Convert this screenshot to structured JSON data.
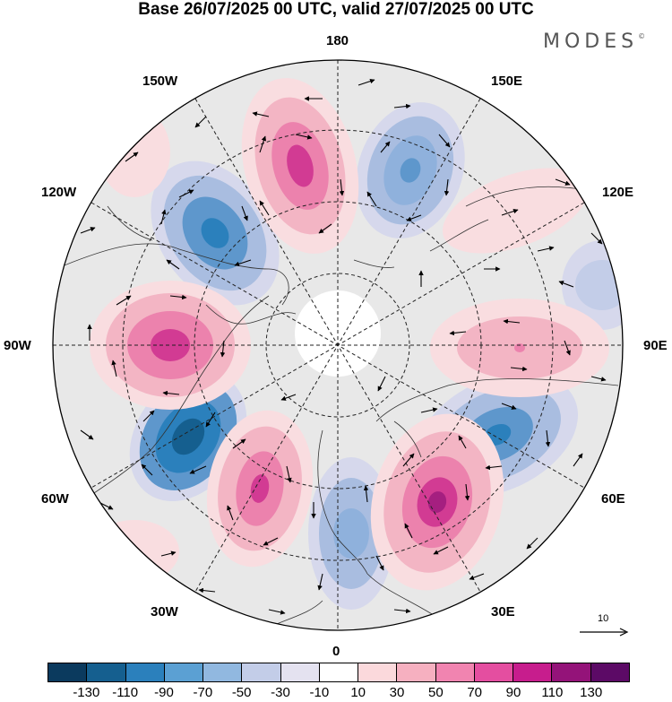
{
  "title": "Base 26/07/2025 00 UTC, valid 27/07/2025 00 UTC",
  "brand": "MODES",
  "brand_mark": "©",
  "longitude_labels": {
    "lon_180": "180",
    "lon_150e": "150E",
    "lon_120e": "120E",
    "lon_90e": "90E",
    "lon_60e": "60E",
    "lon_30e": "30E",
    "lon_0": "0",
    "lon_30w": "30W",
    "lon_60w": "60W",
    "lon_90w": "90W",
    "lon_120w": "120W",
    "lon_150w": "150W"
  },
  "reference_vector": {
    "label": "10"
  },
  "colorbar": {
    "colors": [
      "#0b3a5e",
      "#155f8f",
      "#2b80bc",
      "#5ba0d3",
      "#91b8e0",
      "#c3cde8",
      "#e4e2f0",
      "#ffffff",
      "#fbd9dc",
      "#f6b0c0",
      "#f184b0",
      "#e44ea0",
      "#c71d8d",
      "#941379",
      "#5c0a66"
    ],
    "ticks": [
      "-130",
      "-110",
      "-90",
      "-70",
      "-50",
      "-30",
      "-10",
      "10",
      "30",
      "50",
      "70",
      "90",
      "110",
      "130"
    ]
  },
  "field_colors": {
    "neg_deep": "#1f6aa6",
    "neg_mid": "#5e97cc",
    "neg_light": "#a9bde0",
    "neg_faint": "#d6d8ec",
    "pos_faint": "#f9dde0",
    "pos_light": "#f3b5c4",
    "pos_mid": "#ec82ad",
    "pos_deep": "#d23b93",
    "pos_core": "#a51f80",
    "neutral": "#e8e8e8"
  }
}
